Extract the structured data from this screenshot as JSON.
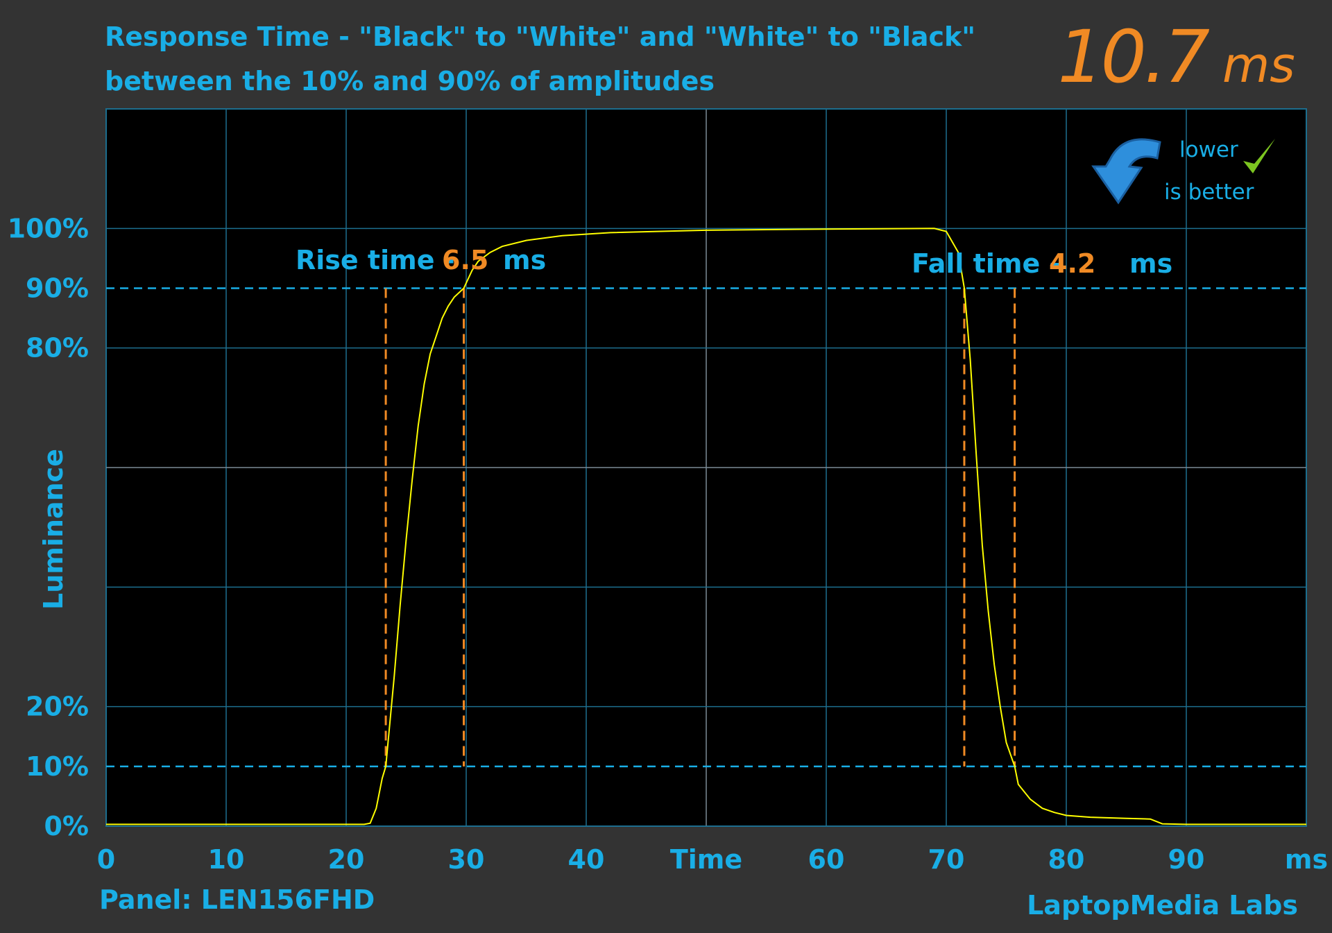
{
  "chart_data": {
    "type": "line",
    "title": "Response Time - \"Black\" to \"White\" and \"White\" to \"Black\"",
    "subtitle": "between the 10% and 90% of amplitudes",
    "headline_value": "10.7",
    "headline_unit": "ms",
    "badge": [
      "lower",
      "is better"
    ],
    "ylabel": "Luminance",
    "panel": "Panel: LEN156FHD",
    "credit": "LaptopMedia Labs",
    "annotations": [
      {
        "label": "Rise time -",
        "value": "6.5",
        "unit": "ms"
      },
      {
        "label": "Fall time -",
        "value": "4.2",
        "unit": "ms"
      }
    ],
    "xlim": [
      0,
      100
    ],
    "ylim": [
      0,
      120
    ],
    "xticks": [
      0,
      10,
      20,
      30,
      40,
      {
        "value": 50,
        "label": "Time"
      },
      60,
      70,
      80,
      90,
      {
        "value": 100,
        "label": "ms"
      }
    ],
    "yticks": [
      {
        "value": 0,
        "label": "0%"
      },
      {
        "value": 10,
        "label": "10%"
      },
      {
        "value": 20,
        "label": "20%"
      },
      {
        "value": 80,
        "label": "80%"
      },
      {
        "value": 90,
        "label": "90%"
      },
      {
        "value": 100,
        "label": "100%"
      }
    ],
    "ygrid": [
      0,
      20,
      40,
      60,
      80,
      100,
      120
    ],
    "hlines": [
      10,
      90
    ],
    "vlines": [
      23.3,
      29.8,
      71.5,
      75.7
    ],
    "x": [
      0,
      5,
      10,
      15,
      21.5,
      22,
      22.5,
      23,
      23.3,
      24,
      24.5,
      25,
      25.5,
      26,
      26.5,
      27,
      27.5,
      28,
      28.5,
      29,
      29.8,
      30.5,
      31,
      32,
      33,
      35,
      38,
      42,
      50,
      60,
      69,
      70,
      71,
      71.5,
      72,
      72.5,
      73,
      73.5,
      74,
      74.5,
      75,
      75.7,
      76,
      77,
      78,
      79,
      80,
      82,
      85,
      87,
      88,
      90,
      100
    ],
    "series": [
      {
        "name": "Luminance",
        "color": "#ffff00",
        "values": [
          0.3,
          0.3,
          0.3,
          0.3,
          0.3,
          0.5,
          3,
          8,
          10,
          25,
          37,
          48,
          58,
          67,
          74,
          79,
          82,
          85,
          87,
          88.5,
          90,
          93,
          94.5,
          96,
          97,
          98,
          98.8,
          99.3,
          99.7,
          99.9,
          100,
          99.5,
          96,
          90,
          78,
          62,
          47,
          36,
          27,
          20,
          14,
          10,
          7,
          4.5,
          3,
          2.3,
          1.8,
          1.5,
          1.3,
          1.2,
          0.4,
          0.3,
          0.3
        ]
      }
    ]
  }
}
